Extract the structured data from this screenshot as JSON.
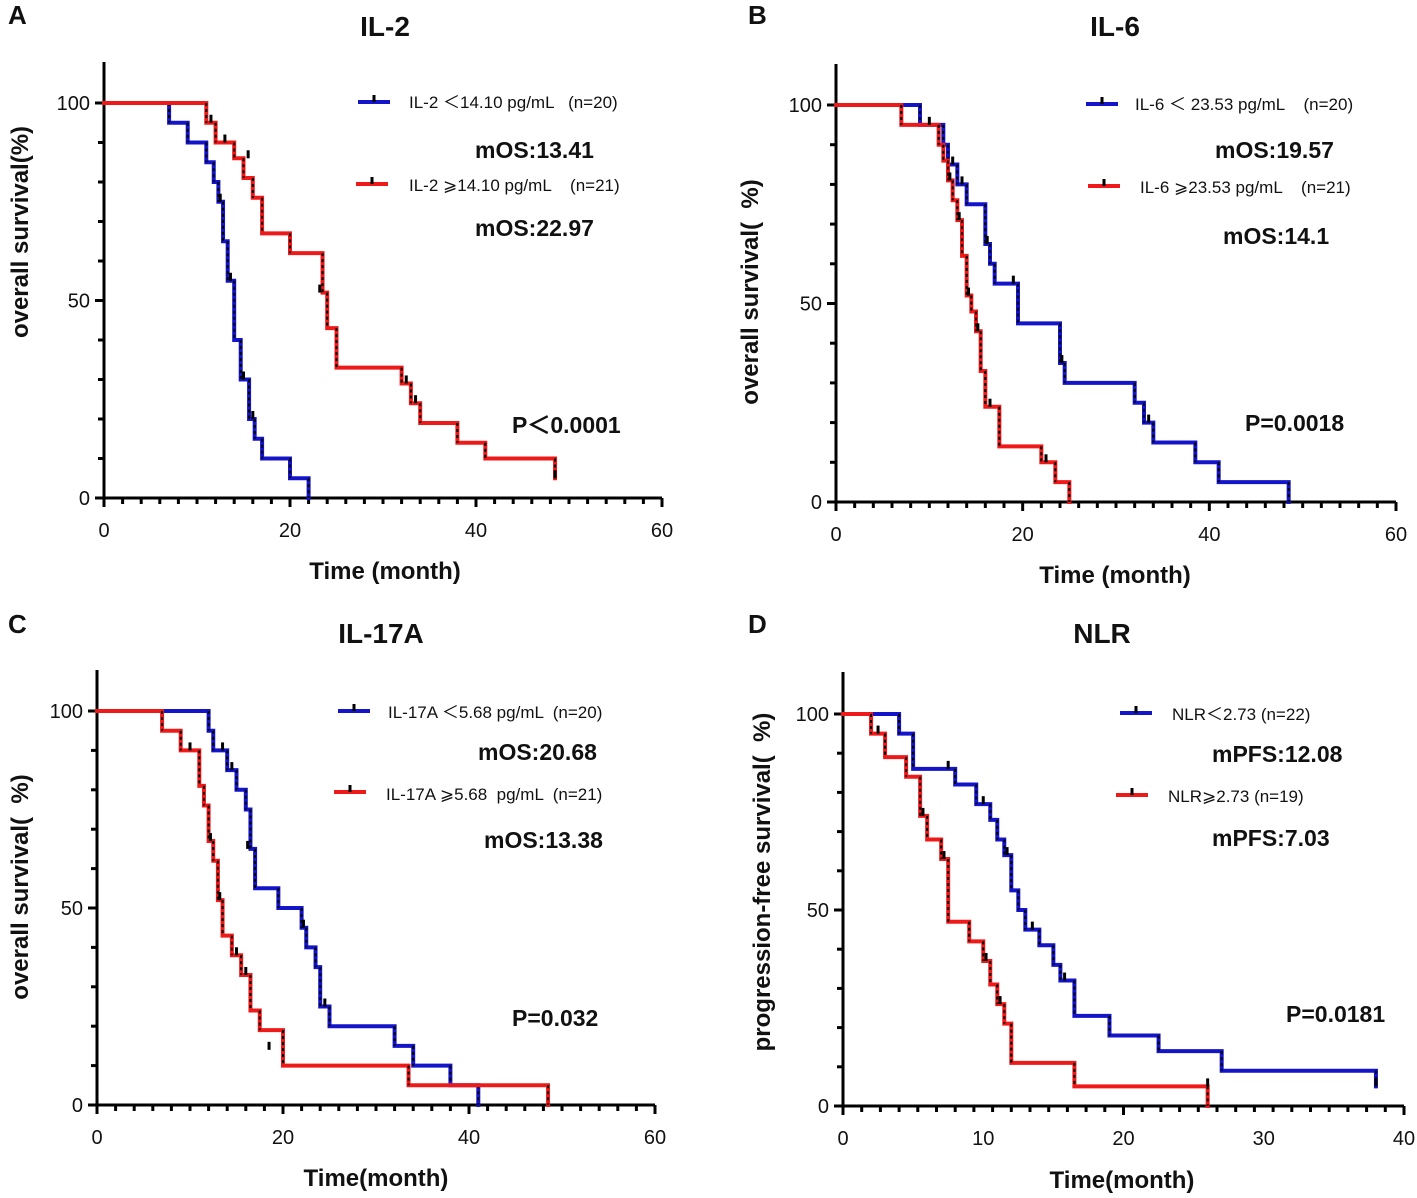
{
  "colors": {
    "blue": "#1414C8",
    "red": "#EE1A1A",
    "censor": "#000000"
  },
  "chart_data": [
    {
      "panel": "A",
      "type": "line",
      "step": true,
      "title": "IL-2",
      "xlabel": "Time (month)",
      "ylabel": "overall survival(%)",
      "xlim": [
        0,
        60
      ],
      "ylim": [
        0,
        110
      ],
      "xticks": [
        0,
        20,
        40,
        60
      ],
      "yticks": [
        0,
        50,
        100
      ],
      "series": [
        {
          "name": "IL-2 ＜14.10 pg/mL   (n=20)",
          "color": "#1414C8",
          "x": [
            0,
            7,
            9,
            11,
            11.8,
            12.3,
            12.8,
            13.3,
            14,
            14.7,
            15.6,
            16.2,
            17,
            20,
            22
          ],
          "y": [
            100,
            95,
            90,
            85,
            80,
            75,
            65,
            55,
            40,
            30,
            20,
            15,
            10,
            5,
            0
          ],
          "censor": [
            [
              12.5,
              75
            ],
            [
              13.6,
              55
            ],
            [
              15,
              30
            ],
            [
              16,
              20
            ]
          ]
        },
        {
          "name": "IL-2 ⩾14.10 pg/mL    (n=21)",
          "color": "#EE1A1A",
          "x": [
            0,
            11,
            12,
            14,
            15,
            16,
            17,
            20,
            23.5,
            24,
            25,
            32,
            33,
            34,
            38,
            41,
            48.5
          ],
          "y": [
            100,
            95,
            90,
            86,
            81,
            76,
            67,
            62,
            52,
            43,
            33,
            29,
            24,
            19,
            14,
            10,
            5
          ],
          "censor": [
            [
              11.5,
              95
            ],
            [
              13,
              90
            ],
            [
              15.5,
              86
            ],
            [
              23.2,
              52
            ],
            [
              32.5,
              29
            ],
            [
              33.5,
              24
            ],
            [
              48.5,
              5
            ]
          ]
        }
      ],
      "annotations": {
        "m1": "mOS:13.41",
        "m2": "mOS:22.97",
        "p": "P＜0.0001"
      }
    },
    {
      "panel": "B",
      "type": "line",
      "step": true,
      "title": "IL-6",
      "xlabel": "Time (month)",
      "ylabel": "overall survival(  %)",
      "xlim": [
        0,
        60
      ],
      "ylim": [
        0,
        110
      ],
      "xticks": [
        0,
        20,
        40,
        60
      ],
      "yticks": [
        0,
        50,
        100
      ],
      "series": [
        {
          "name": "IL-6 ＜ 23.53 pg/mL    (n=20)",
          "color": "#1414C8",
          "x": [
            0,
            9,
            11.5,
            12,
            13,
            14,
            16,
            16.5,
            17,
            19.5,
            24,
            24.5,
            32,
            33,
            34,
            38.5,
            41,
            48.5
          ],
          "y": [
            100,
            95,
            90,
            85,
            80,
            75,
            65,
            60,
            55,
            45,
            35,
            30,
            25,
            20,
            15,
            10,
            5,
            0
          ],
          "censor": [
            [
              12.5,
              85
            ],
            [
              13.5,
              80
            ],
            [
              16.2,
              65
            ],
            [
              19,
              55
            ],
            [
              24.2,
              35
            ],
            [
              33.5,
              20
            ]
          ]
        },
        {
          "name": "IL-6 ⩾23.53 pg/mL    (n=21)",
          "color": "#EE1A1A",
          "x": [
            0,
            7,
            11,
            11.5,
            12,
            12.5,
            13,
            13.5,
            14,
            14.5,
            15,
            15.5,
            16,
            17.5,
            22,
            23.5,
            25
          ],
          "y": [
            100,
            95,
            90,
            86,
            81,
            76,
            71,
            62,
            52,
            48,
            43,
            33,
            24,
            14,
            10,
            5,
            0
          ],
          "censor": [
            [
              10,
              95
            ],
            [
              12.2,
              81
            ],
            [
              13.2,
              71
            ],
            [
              14.2,
              52
            ],
            [
              15.2,
              43
            ],
            [
              16.5,
              24
            ],
            [
              22.5,
              10
            ]
          ]
        }
      ],
      "annotations": {
        "m1": "mOS:19.57",
        "m2": "mOS:14.1",
        "p": "P=0.0018"
      }
    },
    {
      "panel": "C",
      "type": "line",
      "step": true,
      "title": "IL-17A",
      "xlabel": "Time(month)",
      "ylabel": "overall survival(  %)",
      "xlim": [
        0,
        60
      ],
      "ylim": [
        0,
        110
      ],
      "xticks": [
        0,
        20,
        40,
        60
      ],
      "yticks": [
        0,
        50,
        100
      ],
      "series": [
        {
          "name": "IL-17A ＜5.68 pg/mL  (n=20)",
          "color": "#1414C8",
          "x": [
            0,
            12,
            12.5,
            14,
            15,
            16,
            16.5,
            17,
            19.5,
            22,
            22.5,
            23.5,
            24,
            25,
            32,
            34,
            38,
            41
          ],
          "y": [
            100,
            95,
            90,
            85,
            80,
            75,
            65,
            55,
            50,
            45,
            40,
            35,
            25,
            20,
            15,
            10,
            5,
            0
          ],
          "censor": [
            [
              13.5,
              90
            ],
            [
              14.5,
              85
            ],
            [
              16.2,
              65
            ],
            [
              22.2,
              45
            ],
            [
              24.5,
              25
            ]
          ]
        },
        {
          "name": "IL-17A ⩾5.68  pg/mL  (n=21)",
          "color": "#EE1A1A",
          "x": [
            0,
            7,
            9,
            11,
            11.5,
            12,
            12.5,
            13,
            13.5,
            14.5,
            15.5,
            16.5,
            17.5,
            20,
            33.5,
            48.5
          ],
          "y": [
            100,
            95,
            90,
            81,
            76,
            67,
            62,
            52,
            43,
            38,
            33,
            24,
            19,
            10,
            5,
            0
          ],
          "censor": [
            [
              10,
              90
            ],
            [
              12.2,
              67
            ],
            [
              13.2,
              52
            ],
            [
              15,
              38
            ],
            [
              16,
              33
            ],
            [
              18.5,
              14
            ]
          ]
        }
      ],
      "annotations": {
        "m1": "mOS:20.68",
        "m2": "mOS:13.38",
        "p": "P=0.032"
      }
    },
    {
      "panel": "D",
      "type": "line",
      "step": true,
      "title": "NLR",
      "xlabel": "Time(month)",
      "ylabel": "progression-free survival(  %)",
      "xlim": [
        0,
        40
      ],
      "ylim": [
        0,
        110
      ],
      "xticks": [
        0,
        10,
        20,
        30,
        40
      ],
      "yticks": [
        0,
        50,
        100
      ],
      "series": [
        {
          "name": "NLR＜2.73 (n=22)",
          "color": "#1414C8",
          "x": [
            0,
            4,
            5,
            8,
            9.5,
            10.5,
            11,
            11.5,
            12,
            12.5,
            13,
            14,
            15,
            15.5,
            16.5,
            19,
            22.5,
            27,
            38
          ],
          "y": [
            100,
            95,
            86,
            82,
            77,
            73,
            68,
            64,
            55,
            50,
            45,
            41,
            36,
            32,
            23,
            18,
            14,
            9,
            5
          ],
          "censor": [
            [
              7.5,
              86
            ],
            [
              10,
              77
            ],
            [
              11.7,
              64
            ],
            [
              13.5,
              45
            ],
            [
              15.8,
              32
            ],
            [
              38,
              5
            ]
          ]
        },
        {
          "name": "NLR⩾2.73 (n=19)",
          "color": "#EE1A1A",
          "x": [
            0,
            2,
            3,
            4.5,
            5.5,
            6,
            7,
            7.5,
            9,
            10,
            10.5,
            11,
            11.5,
            12,
            16.5,
            26
          ],
          "y": [
            100,
            95,
            89,
            84,
            74,
            68,
            63,
            47,
            42,
            37,
            31,
            26,
            21,
            11,
            5,
            0
          ],
          "censor": [
            [
              2.5,
              95
            ],
            [
              5.7,
              74
            ],
            [
              7.2,
              63
            ],
            [
              10.2,
              37
            ],
            [
              11.2,
              26
            ],
            [
              26,
              5
            ]
          ]
        }
      ],
      "annotations": {
        "m1": "mPFS:12.08",
        "m2": "mPFS:7.03",
        "p": "P=0.0181"
      }
    }
  ]
}
